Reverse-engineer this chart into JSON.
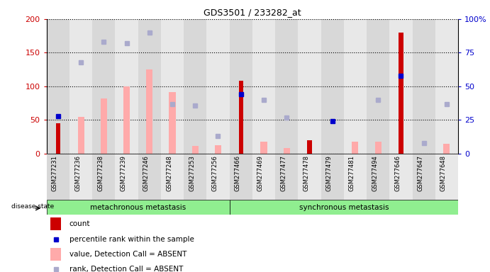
{
  "title": "GDS3501 / 233282_at",
  "samples": [
    "GSM277231",
    "GSM277236",
    "GSM277238",
    "GSM277239",
    "GSM277246",
    "GSM277248",
    "GSM277253",
    "GSM277256",
    "GSM277466",
    "GSM277469",
    "GSM277477",
    "GSM277478",
    "GSM277479",
    "GSM277481",
    "GSM277494",
    "GSM277646",
    "GSM277647",
    "GSM277648"
  ],
  "count": [
    45,
    0,
    0,
    0,
    0,
    0,
    0,
    0,
    108,
    0,
    0,
    20,
    0,
    0,
    0,
    180,
    0,
    0
  ],
  "percentile_rank": [
    28,
    0,
    0,
    0,
    0,
    0,
    0,
    0,
    44,
    0,
    0,
    0,
    24,
    0,
    0,
    58,
    0,
    0
  ],
  "value_absent": [
    0,
    55,
    82,
    100,
    125,
    92,
    12,
    13,
    0,
    18,
    8,
    0,
    0,
    18,
    18,
    0,
    0,
    15
  ],
  "rank_absent": [
    0,
    68,
    83,
    82,
    90,
    37,
    36,
    13,
    0,
    40,
    27,
    0,
    0,
    0,
    40,
    0,
    8,
    37
  ],
  "n_group1": 8,
  "group1_label": "metachronous metastasis",
  "group2_label": "synchronous metastasis",
  "ylim_left": [
    0,
    200
  ],
  "ylim_right": [
    0,
    100
  ],
  "yticks_left": [
    0,
    50,
    100,
    150,
    200
  ],
  "yticks_right": [
    0,
    25,
    50,
    75,
    100
  ],
  "ytick_right_labels": [
    "0",
    "25",
    "50",
    "75",
    "100%"
  ],
  "left_axis_color": "#cc0000",
  "right_axis_color": "#0000cc",
  "count_color": "#cc0000",
  "rank_color": "#0000cc",
  "value_absent_color": "#ffaaaa",
  "rank_absent_color": "#aaaacc",
  "col_bg_even": "#d8d8d8",
  "col_bg_odd": "#e8e8e8",
  "group_bg": "#90ee90",
  "group_dark_border": "#55bb55"
}
